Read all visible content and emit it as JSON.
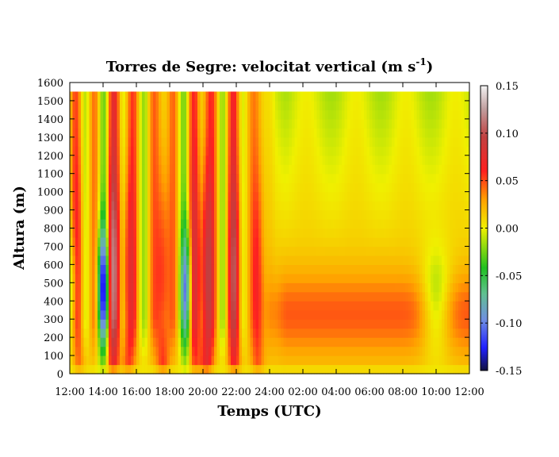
{
  "chart_data": {
    "type": "heatmap",
    "title": "Torres de Segre: velocitat vertical (m s",
    "title_sup": "-1",
    "title_end": ")",
    "xlabel": "Temps (UTC)",
    "ylabel": "Altura (m)",
    "x_ticks": [
      "12:00",
      "14:00",
      "16:00",
      "18:00",
      "20:00",
      "22:00",
      "24:00",
      "02:00",
      "04:00",
      "06:00",
      "08:00",
      "10:00",
      "12:00"
    ],
    "y_ticks": [
      "0",
      "100",
      "200",
      "300",
      "400",
      "500",
      "600",
      "700",
      "800",
      "900",
      "1000",
      "1100",
      "1200",
      "1300",
      "1400",
      "1500",
      "1600"
    ],
    "x_hours_range": [
      0,
      24
    ],
    "ylim": [
      0,
      1600
    ],
    "data_top_m": 1550,
    "colorbar": {
      "ticks": [
        "-0.15",
        "-0.10",
        "-0.05",
        "0.00",
        "0.05",
        "0.10",
        "0.15"
      ],
      "range": [
        -0.15,
        0.15
      ]
    },
    "updraft_cores": [
      {
        "hours": 0.55,
        "w_max": 0.045
      },
      {
        "hours": 2.6,
        "w_max": 0.08
      },
      {
        "hours": 3.5,
        "w_max": 0.06
      },
      {
        "hours": 5.6,
        "w_max": 0.07
      },
      {
        "hours": 7.5,
        "w_max": 0.05
      },
      {
        "hours": 8.2,
        "w_max": 0.09
      },
      {
        "hours": 9.9,
        "w_max": 0.07
      },
      {
        "hours": 11.3,
        "w_max": 0.05
      }
    ],
    "downdraft_cores": [
      {
        "hours": 0.2,
        "w_min": -0.04
      },
      {
        "hours": 2.0,
        "w_min": -0.13
      },
      {
        "hours": 7.0,
        "w_min": -0.1
      },
      {
        "hours": 22.0,
        "w_min": -0.05
      }
    ]
  }
}
